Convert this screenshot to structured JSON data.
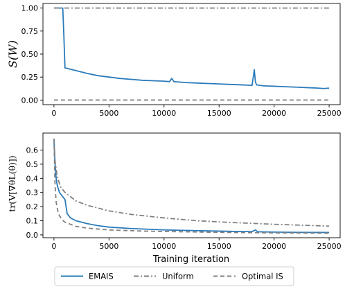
{
  "chart_data": [
    {
      "type": "line",
      "ylabel": "S(W)",
      "xlim": [
        -1000,
        26000
      ],
      "ylim": [
        -0.05,
        1.05
      ],
      "xticks": [
        "0",
        "5000",
        "10000",
        "15000",
        "20000",
        "25000"
      ],
      "yticks": [
        "0.00",
        "0.25",
        "0.50",
        "0.75",
        "1.00"
      ],
      "grid": false,
      "series": [
        {
          "name": "EMAIS",
          "color": "#2b7bba",
          "style": "solid",
          "x": [
            0,
            800,
            900,
            1000,
            2000,
            3000,
            4000,
            5000,
            6000,
            7000,
            8000,
            9000,
            10000,
            10500,
            10700,
            10900,
            11500,
            12000,
            13000,
            14000,
            15000,
            16000,
            17000,
            18000,
            18200,
            18300,
            18400,
            19000,
            20000,
            21000,
            22000,
            23000,
            24000,
            24500,
            25000
          ],
          "y": [
            1.0,
            1.0,
            0.7,
            0.35,
            0.32,
            0.29,
            0.265,
            0.25,
            0.235,
            0.225,
            0.215,
            0.21,
            0.205,
            0.2,
            0.235,
            0.2,
            0.195,
            0.19,
            0.185,
            0.18,
            0.175,
            0.17,
            0.165,
            0.16,
            0.33,
            0.2,
            0.165,
            0.155,
            0.15,
            0.145,
            0.14,
            0.135,
            0.13,
            0.125,
            0.13
          ]
        },
        {
          "name": "Uniform",
          "color": "#808080",
          "style": "dashdot",
          "x": [
            0,
            25000
          ],
          "y": [
            1.0,
            1.0
          ]
        },
        {
          "name": "Optimal IS",
          "color": "#808080",
          "style": "dashed",
          "x": [
            0,
            25000
          ],
          "y": [
            0.0,
            0.0
          ]
        }
      ]
    },
    {
      "type": "line",
      "ylabel": "tr(V[∇θL(θ)])",
      "xlabel": "Training iteration",
      "xlim": [
        -1000,
        26000
      ],
      "ylim": [
        -0.02,
        0.72
      ],
      "xticks": [
        "0",
        "5000",
        "10000",
        "15000",
        "20000",
        "25000"
      ],
      "yticks": [
        "0.0",
        "0.1",
        "0.2",
        "0.3",
        "0.4",
        "0.5",
        "0.6"
      ],
      "grid": false,
      "series": [
        {
          "name": "EMAIS",
          "color": "#2b7bba",
          "style": "solid",
          "x": [
            0,
            100,
            200,
            300,
            500,
            800,
            1000,
            1200,
            1500,
            2000,
            3000,
            4000,
            5000,
            7000,
            10000,
            13000,
            16000,
            18000,
            18300,
            18500,
            20000,
            22000,
            25000
          ],
          "y": [
            0.68,
            0.5,
            0.4,
            0.35,
            0.3,
            0.27,
            0.25,
            0.15,
            0.12,
            0.1,
            0.08,
            0.065,
            0.055,
            0.045,
            0.035,
            0.03,
            0.025,
            0.023,
            0.035,
            0.022,
            0.02,
            0.018,
            0.017
          ]
        },
        {
          "name": "Uniform",
          "color": "#808080",
          "style": "dashdot",
          "x": [
            0,
            100,
            300,
            600,
            1000,
            2000,
            3000,
            5000,
            7000,
            10000,
            13000,
            16000,
            20000,
            25000
          ],
          "y": [
            0.68,
            0.52,
            0.41,
            0.34,
            0.3,
            0.24,
            0.21,
            0.17,
            0.145,
            0.12,
            0.1,
            0.088,
            0.075,
            0.062
          ]
        },
        {
          "name": "Optimal IS",
          "color": "#808080",
          "style": "dashed",
          "x": [
            0,
            100,
            200,
            400,
            700,
            1000,
            2000,
            3000,
            5000,
            8000,
            10000,
            15000,
            20000,
            25000
          ],
          "y": [
            0.68,
            0.35,
            0.23,
            0.15,
            0.11,
            0.09,
            0.06,
            0.048,
            0.035,
            0.027,
            0.024,
            0.018,
            0.014,
            0.012
          ]
        }
      ]
    }
  ],
  "legend": {
    "items": [
      {
        "label": "EMAIS",
        "color": "#2b7bba",
        "style": "solid"
      },
      {
        "label": "Uniform",
        "color": "#808080",
        "style": "dashdot"
      },
      {
        "label": "Optimal IS",
        "color": "#808080",
        "style": "dashed"
      }
    ]
  }
}
